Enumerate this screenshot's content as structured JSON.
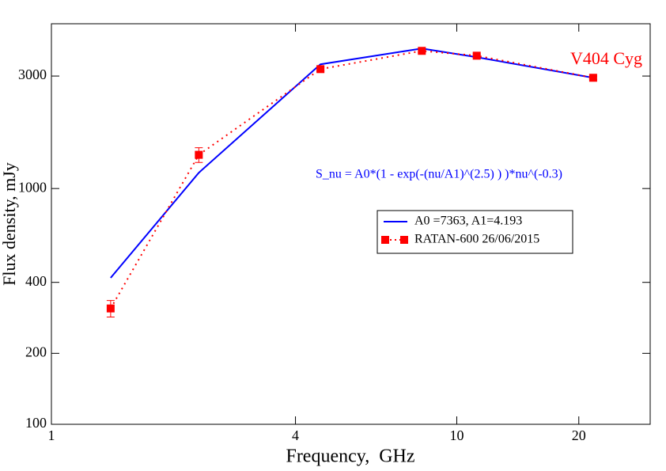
{
  "chart_data": {
    "type": "line",
    "x_label": "Frequency,  GHz",
    "y_label": "Flux density, mJy",
    "annotations": [
      "V404 Cyg",
      "S_nu = A0*(1 - exp(-(nu/A1)^(2.5) ) )*nu^(-0.3)"
    ],
    "x": [
      1.4,
      2.31,
      4.61,
      8.2,
      11.2,
      21.7
    ],
    "series": [
      {
        "name": "A0 =7363, A1=4.193",
        "color": "#0000ff",
        "values": [
          418,
          1167,
          3365,
          3927,
          3606,
          2950
        ]
      },
      {
        "name": "RATAN-600 26/06/2015",
        "color": "#ff0000",
        "values": [
          310,
          1390,
          3210,
          3837,
          3660,
          2950
        ],
        "errors": [
          25,
          100,
          60,
          60,
          60,
          50
        ]
      }
    ],
    "xlim": [
      1,
      30
    ],
    "ylim": [
      100,
      5000
    ],
    "xticks": [
      1,
      4,
      10,
      20
    ],
    "yticks": [
      100,
      200,
      400,
      1000,
      3000
    ],
    "log_x": true,
    "log_y": true
  }
}
